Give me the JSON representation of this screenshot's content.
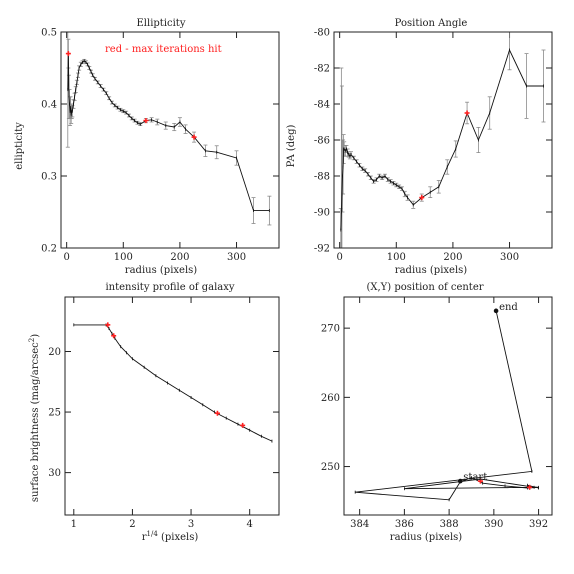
{
  "colors": {
    "axis": "#222222",
    "line": "#111111",
    "error": "#8a8a8a",
    "highlight": "#ff2020"
  },
  "chart_data": [
    {
      "type": "line",
      "title": "Ellipticity",
      "xlabel": "radius (pixels)",
      "ylabel": "ellipticity",
      "xlim": [
        -10,
        375
      ],
      "ylim": [
        0.2,
        0.5
      ],
      "xticks": [
        0,
        100,
        200,
        300
      ],
      "yticks": [
        0.2,
        0.3,
        0.4,
        0.5
      ],
      "grid": false,
      "annotation": "red - max iterations hit",
      "x": [
        2,
        3,
        4,
        5,
        6,
        7,
        8,
        9,
        10,
        12,
        14,
        16,
        18,
        20,
        22,
        25,
        28,
        31,
        34,
        37,
        40,
        43,
        46,
        50,
        55,
        60,
        65,
        70,
        75,
        80,
        85,
        90,
        95,
        100,
        105,
        110,
        115,
        120,
        125,
        130,
        140,
        150,
        160,
        175,
        190,
        200,
        210,
        225,
        245,
        265,
        300,
        330,
        358
      ],
      "y": [
        0.42,
        0.47,
        0.41,
        0.4,
        0.39,
        0.395,
        0.385,
        0.39,
        0.39,
        0.4,
        0.41,
        0.42,
        0.43,
        0.44,
        0.45,
        0.455,
        0.458,
        0.46,
        0.458,
        0.455,
        0.45,
        0.445,
        0.44,
        0.435,
        0.43,
        0.425,
        0.42,
        0.415,
        0.408,
        0.402,
        0.398,
        0.395,
        0.392,
        0.39,
        0.388,
        0.384,
        0.38,
        0.377,
        0.374,
        0.372,
        0.377,
        0.378,
        0.375,
        0.37,
        0.368,
        0.375,
        0.365,
        0.354,
        0.335,
        0.333,
        0.325,
        0.252,
        0.252
      ],
      "err": [
        0.08,
        0.02,
        0.03,
        0.02,
        0.02,
        0.015,
        0.012,
        0.01,
        0.008,
        0.006,
        0.005,
        0.004,
        0.003,
        0.003,
        0.003,
        0.003,
        0.002,
        0.002,
        0.002,
        0.002,
        0.002,
        0.002,
        0.002,
        0.002,
        0.002,
        0.002,
        0.002,
        0.002,
        0.002,
        0.002,
        0.002,
        0.002,
        0.002,
        0.002,
        0.002,
        0.002,
        0.002,
        0.002,
        0.002,
        0.002,
        0.003,
        0.003,
        0.004,
        0.005,
        0.005,
        0.006,
        0.006,
        0.007,
        0.008,
        0.009,
        0.01,
        0.018,
        0.02
      ],
      "red_points": [
        [
          3,
          0.47
        ],
        [
          140,
          0.377
        ],
        [
          225,
          0.354
        ]
      ]
    },
    {
      "type": "line",
      "title": "Position Angle",
      "xlabel": "radius (pixels)",
      "ylabel": "PA (deg)",
      "xlim": [
        -10,
        375
      ],
      "ylim": [
        -92,
        -80
      ],
      "xticks": [
        0,
        100,
        200,
        300
      ],
      "yticks": [
        -92,
        -90,
        -88,
        -86,
        -84,
        -82,
        -80
      ],
      "grid": false,
      "x": [
        2,
        3,
        4,
        5,
        6,
        7,
        8,
        10,
        12,
        14,
        16,
        18,
        20,
        25,
        30,
        35,
        40,
        45,
        50,
        55,
        60,
        65,
        70,
        75,
        80,
        85,
        90,
        95,
        100,
        105,
        110,
        115,
        120,
        130,
        145,
        160,
        175,
        190,
        205,
        225,
        245,
        265,
        300,
        330,
        360
      ],
      "y": [
        -91.0,
        -90.0,
        -89.0,
        -88.0,
        -87.5,
        -86.5,
        -86.5,
        -86.6,
        -86.5,
        -86.7,
        -86.8,
        -86.9,
        -86.8,
        -87.0,
        -87.2,
        -87.4,
        -87.6,
        -87.7,
        -87.9,
        -88.1,
        -88.3,
        -88.2,
        -88.0,
        -88.1,
        -88.0,
        -88.2,
        -88.3,
        -88.4,
        -88.5,
        -88.6,
        -88.7,
        -89.0,
        -89.2,
        -89.6,
        -89.2,
        -88.9,
        -88.6,
        -87.5,
        -86.5,
        -84.5,
        -86.0,
        -84.5,
        -81.0,
        -83.0,
        -83.0
      ],
      "err": [
        1.2,
        8.0,
        6.0,
        2.0,
        1.5,
        0.8,
        0.4,
        0.3,
        0.2,
        0.2,
        0.15,
        0.15,
        0.15,
        0.1,
        0.1,
        0.1,
        0.1,
        0.1,
        0.1,
        0.1,
        0.1,
        0.1,
        0.1,
        0.1,
        0.1,
        0.1,
        0.1,
        0.1,
        0.1,
        0.1,
        0.1,
        0.15,
        0.15,
        0.2,
        0.2,
        0.3,
        0.35,
        0.4,
        0.45,
        0.6,
        0.7,
        0.9,
        1.1,
        1.8,
        2.0
      ],
      "red_points": [
        [
          145,
          -89.2
        ],
        [
          225,
          -84.5
        ]
      ]
    },
    {
      "type": "line",
      "title": "intensity profile of galaxy",
      "xlabel": "r^1/4 (pixels)",
      "ylabel": "surface brightness (mag/arcsec^2)",
      "xlim": [
        0.85,
        4.5
      ],
      "ylim": [
        33.5,
        15.5
      ],
      "xticks": [
        1,
        2,
        3,
        4
      ],
      "yticks": [
        20,
        25,
        30
      ],
      "grid": false,
      "x": [
        1.0,
        1.55,
        1.6,
        1.65,
        1.7,
        1.8,
        1.9,
        2.0,
        2.2,
        2.4,
        2.6,
        2.8,
        3.0,
        3.2,
        3.4,
        3.6,
        3.8,
        4.0,
        4.2,
        4.38
      ],
      "y": [
        17.8,
        17.8,
        18.1,
        18.5,
        18.9,
        19.6,
        20.1,
        20.6,
        21.3,
        22.0,
        22.6,
        23.2,
        23.8,
        24.4,
        25.0,
        25.5,
        26.0,
        26.5,
        27.0,
        27.4
      ],
      "red_points": [
        [
          1.58,
          17.8
        ],
        [
          1.68,
          18.7
        ],
        [
          3.45,
          25.1
        ],
        [
          3.88,
          26.1
        ]
      ]
    },
    {
      "type": "line",
      "title": "(X,Y) position of center",
      "xlabel": "radius (pixels)",
      "ylabel": "",
      "xlim": [
        383.3,
        392.6
      ],
      "ylim": [
        243.0,
        274.5
      ],
      "xticks": [
        384,
        386,
        388,
        390,
        392
      ],
      "yticks": [
        250,
        260,
        270
      ],
      "grid": false,
      "x": [
        390.1,
        391.7,
        383.8,
        388.0,
        388.5,
        389.0,
        389.5,
        390.5,
        391.5,
        392.0,
        391.6,
        389.4,
        386.0,
        391.8,
        391.5,
        392.0
      ],
      "y": [
        272.5,
        249.3,
        246.3,
        245.2,
        247.8,
        248.4,
        247.6,
        247.2,
        246.9,
        247.0,
        247.1,
        248.2,
        246.8,
        247.0,
        247.3,
        246.9
      ],
      "labels": [
        "end",
        "start"
      ],
      "label_points": [
        [
          390.1,
          272.5
        ],
        [
          388.5,
          247.9
        ]
      ],
      "red_points": [
        [
          391.6,
          247.0
        ],
        [
          389.4,
          247.9
        ]
      ]
    }
  ]
}
